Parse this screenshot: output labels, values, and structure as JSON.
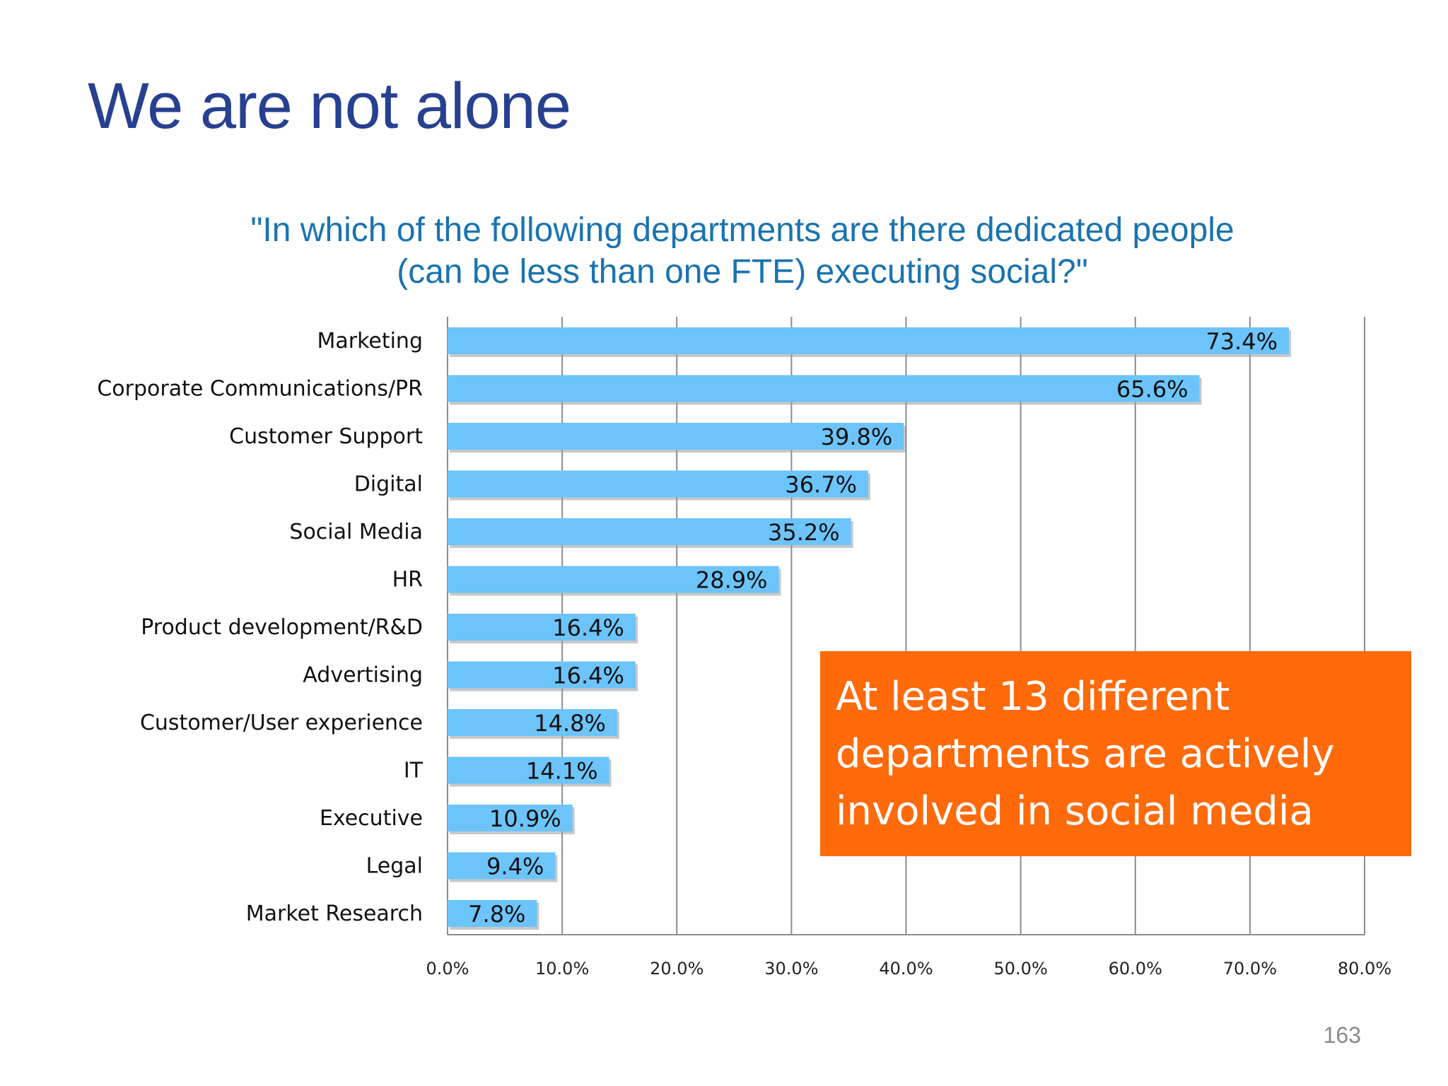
{
  "slide": {
    "title": "We are not alone",
    "page_number": "163"
  },
  "chart_data": {
    "type": "bar",
    "orientation": "horizontal",
    "title_lines": [
      "\"In which of the following departments are there dedicated people",
      "(can be less than one FTE) executing social?\""
    ],
    "categories": [
      "Marketing",
      "Corporate Communications/PR",
      "Customer Support",
      "Digital",
      "Social Media",
      "HR",
      "Product development/R&D",
      "Advertising",
      "Customer/User experience",
      "IT",
      "Executive",
      "Legal",
      "Market Research"
    ],
    "values": [
      73.4,
      65.6,
      39.8,
      36.7,
      35.2,
      28.9,
      16.4,
      16.4,
      14.8,
      14.1,
      10.9,
      9.4,
      7.8
    ],
    "data_labels": [
      "73.4%",
      "65.6%",
      "39.8%",
      "36.7%",
      "35.2%",
      "28.9%",
      "16.4%",
      "16.4%",
      "14.8%",
      "14.1%",
      "10.9%",
      "9.4%",
      "7.8%"
    ],
    "xlim": [
      0,
      80
    ],
    "x_ticks": [
      0,
      10,
      20,
      30,
      40,
      50,
      60,
      70,
      80
    ],
    "x_tick_labels": [
      "0.0%",
      "10.0%",
      "20.0%",
      "30.0%",
      "40.0%",
      "50.0%",
      "60.0%",
      "70.0%",
      "80.0%"
    ],
    "grid": true,
    "xlabel": "",
    "ylabel": ""
  },
  "callout": {
    "lines": [
      "At least 13 different",
      "departments are actively",
      "involved in social media"
    ]
  },
  "colors": {
    "bar": "#6cc4fa",
    "bar_shadow": "#9a9a9a",
    "grid": "#8c8c8c",
    "title": "#27408f",
    "chart_title": "#1a73b0",
    "callout_bg": "#ff6a0a"
  }
}
